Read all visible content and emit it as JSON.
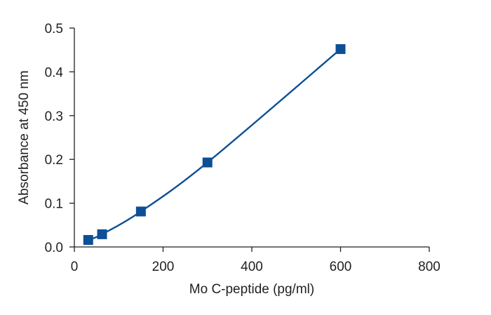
{
  "chart_data": {
    "type": "scatter",
    "title": "",
    "xlabel": "Mo C-peptide (pg/ml)",
    "ylabel": "Absorbance at 450 nm",
    "xlim": [
      0,
      800
    ],
    "ylim": [
      0,
      0.5
    ],
    "x_ticks": [
      0,
      200,
      400,
      600,
      800
    ],
    "x_tick_labels": [
      "0",
      "200",
      "400",
      "600",
      "800"
    ],
    "y_ticks": [
      0,
      0.1,
      0.2,
      0.3,
      0.4,
      0.5
    ],
    "y_tick_labels": [
      "0.0",
      "0.1",
      "0.2",
      "0.3",
      "0.4",
      "0.5"
    ],
    "grid": false,
    "legend": "none",
    "marker": "square",
    "fit_line": "smooth",
    "series": [
      {
        "x": [
          31.25,
          62.5,
          150,
          300,
          600
        ],
        "y": [
          0.016,
          0.029,
          0.081,
          0.193,
          0.452
        ]
      }
    ],
    "colors": {
      "series": "#0d4f96",
      "axis": "#231f20"
    }
  }
}
